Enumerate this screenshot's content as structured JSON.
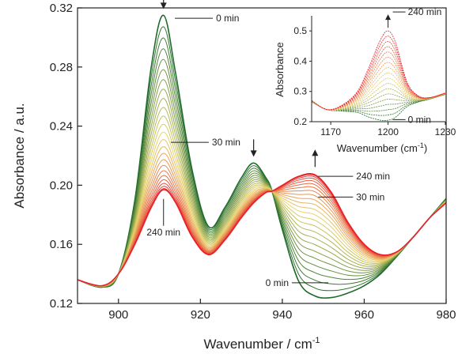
{
  "chart_data": [
    {
      "type": "line",
      "xlabel": "Wavenumber / cm",
      "xlabel_sup": "-1",
      "ylabel": "Absorbance / a.u.",
      "xlim": [
        890,
        980
      ],
      "ylim": [
        0.12,
        0.32
      ],
      "xticks": [
        900,
        920,
        940,
        960,
        980
      ],
      "yticks": [
        0.12,
        0.16,
        0.2,
        0.24,
        0.28,
        0.32
      ],
      "xtick_labels": [
        "900",
        "920",
        "940",
        "960",
        "980"
      ],
      "ytick_labels": [
        "0.12",
        "0.16",
        "0.20",
        "0.24",
        "0.28",
        "0.32"
      ],
      "grid": false,
      "color_start": "#1f6b2a",
      "color_mid": "#e8d36a",
      "color_end": "#e8202a",
      "curve_count": 25,
      "series_first": {
        "x": [
          890,
          896,
          900,
          904,
          908,
          911,
          914,
          918,
          922,
          926,
          930,
          933,
          936,
          937.5,
          940,
          944,
          948,
          952,
          956,
          960,
          964,
          968,
          972,
          976,
          980
        ],
        "y": [
          0.136,
          0.131,
          0.14,
          0.19,
          0.28,
          0.315,
          0.275,
          0.21,
          0.172,
          0.185,
          0.205,
          0.215,
          0.205,
          0.196,
          0.17,
          0.135,
          0.125,
          0.124,
          0.127,
          0.132,
          0.14,
          0.152,
          0.165,
          0.178,
          0.191
        ]
      },
      "series_last": {
        "x": [
          890,
          896,
          900,
          904,
          908,
          911,
          914,
          918,
          922,
          926,
          930,
          933,
          936,
          937.5,
          940,
          944,
          948,
          952,
          956,
          960,
          964,
          968,
          972,
          976,
          980
        ],
        "y": [
          0.136,
          0.132,
          0.14,
          0.16,
          0.185,
          0.197,
          0.188,
          0.165,
          0.153,
          0.163,
          0.178,
          0.188,
          0.195,
          0.196,
          0.2,
          0.206,
          0.207,
          0.195,
          0.175,
          0.16,
          0.153,
          0.155,
          0.165,
          0.178,
          0.188
        ]
      },
      "annotations": [
        {
          "text": "0 min",
          "x": 913,
          "y": 0.313
        },
        {
          "text": "30 min",
          "x": 912,
          "y": 0.229
        },
        {
          "text": "240 min",
          "x": 911,
          "y": 0.195
        },
        {
          "text": "240 min",
          "x": 948,
          "y": 0.206
        },
        {
          "text": "30 min",
          "x": 948,
          "y": 0.192
        },
        {
          "text": "0 min",
          "x": 952,
          "y": 0.134
        }
      ],
      "arrows": [
        {
          "direction": "down",
          "x": 911
        },
        {
          "direction": "down",
          "x": 933
        },
        {
          "direction": "up",
          "x": 948
        }
      ]
    },
    {
      "type": "line",
      "title": "",
      "xlabel": "Wavenumber (cm",
      "xlabel_sup": "-1",
      "xlabel_end": ")",
      "ylabel": "Absorbance",
      "xlim": [
        1160,
        1230
      ],
      "ylim": [
        0.2,
        0.55
      ],
      "xticks": [
        1170,
        1200,
        1230
      ],
      "yticks": [
        0.2,
        0.3,
        0.4,
        0.5
      ],
      "xtick_labels": [
        "1170",
        "1200",
        "1230"
      ],
      "ytick_labels": [
        "0.2",
        "0.3",
        "0.4",
        "0.5"
      ],
      "curve_count": 18,
      "series_first": {
        "x": [
          1160,
          1168,
          1176,
          1184,
          1190,
          1196,
          1200,
          1204,
          1210,
          1216,
          1222,
          1230
        ],
        "y": [
          0.265,
          0.24,
          0.235,
          0.23,
          0.215,
          0.205,
          0.205,
          0.215,
          0.25,
          0.265,
          0.275,
          0.29
        ]
      },
      "series_last": {
        "x": [
          1160,
          1168,
          1176,
          1184,
          1190,
          1196,
          1200,
          1204,
          1210,
          1216,
          1222,
          1230
        ],
        "y": [
          0.27,
          0.24,
          0.255,
          0.3,
          0.38,
          0.47,
          0.5,
          0.46,
          0.33,
          0.285,
          0.28,
          0.295
        ]
      },
      "annotations": [
        {
          "text": "240 min",
          "x": 1200,
          "y": 0.5
        },
        {
          "text": "0 min",
          "x": 1200,
          "y": 0.207
        }
      ],
      "arrows": [
        {
          "direction": "up",
          "x": 1200
        }
      ]
    }
  ]
}
